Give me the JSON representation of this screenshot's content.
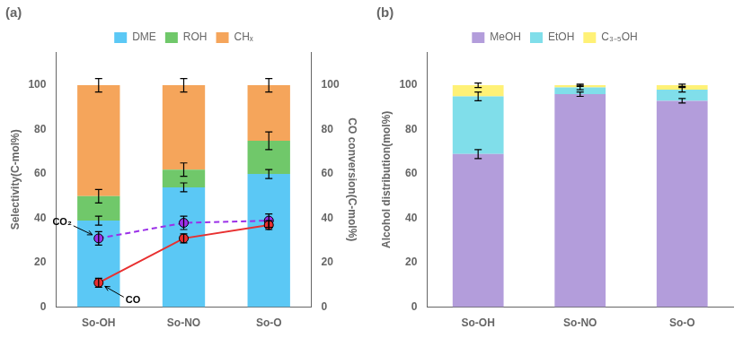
{
  "chart_data": [
    {
      "type": "bar",
      "title": "(a)",
      "categories": [
        "So-OH",
        "So-NO",
        "So-O"
      ],
      "stacked": true,
      "ylabel": "Selectivity(C-mol%)",
      "y2label": "CO conversion(C-mol%)",
      "ylim": [
        0,
        115
      ],
      "yticks": [
        0,
        20,
        40,
        60,
        80,
        100
      ],
      "y2lim": [
        0,
        115
      ],
      "y2ticks": [
        0,
        20,
        40,
        60,
        80,
        100
      ],
      "grid": false,
      "legend": "top",
      "series": [
        {
          "name": "DME",
          "color": "#5BC8F5",
          "values": [
            39,
            54,
            60
          ],
          "errors": [
            2,
            2,
            2
          ]
        },
        {
          "name": "ROH",
          "color": "#70C86A",
          "values": [
            11,
            8,
            15
          ],
          "errors": [
            3,
            3,
            4
          ]
        },
        {
          "name": "CHₓ",
          "color": "#F5A55B",
          "values": [
            50,
            38,
            25
          ],
          "errors": [
            3,
            3,
            3
          ]
        },
        {
          "name": "CO",
          "type": "line",
          "axis": "y2",
          "color": "#E83030",
          "marker": "circle",
          "line_style": "solid",
          "values": [
            11,
            31,
            37
          ],
          "errors": [
            2,
            2,
            2
          ]
        },
        {
          "name": "CO₂",
          "type": "line",
          "axis": "y2",
          "color": "#9B30E8",
          "marker": "circle",
          "line_style": "dashed",
          "values": [
            31,
            38,
            39
          ],
          "errors": [
            3,
            3,
            3
          ]
        }
      ]
    },
    {
      "type": "bar",
      "title": "(b)",
      "categories": [
        "So-OH",
        "So-NO",
        "So-O"
      ],
      "stacked": true,
      "ylabel": "Alcohol distribution(mol%)",
      "ylim": [
        0,
        115
      ],
      "yticks": [
        0,
        20,
        40,
        60,
        80,
        100
      ],
      "grid": false,
      "legend": "top",
      "series": [
        {
          "name": "MeOH",
          "color": "#B39DDB",
          "values": [
            69,
            96,
            93
          ],
          "errors": [
            2,
            1,
            1
          ]
        },
        {
          "name": "EtOH",
          "color": "#80DEEA",
          "values": [
            26,
            3,
            5
          ],
          "errors": [
            2,
            1,
            1
          ]
        },
        {
          "name": "C₃₋₅OH",
          "color": "#FFF176",
          "values": [
            5,
            1,
            2
          ],
          "errors": [
            1,
            0.5,
            0.5
          ]
        }
      ]
    }
  ]
}
